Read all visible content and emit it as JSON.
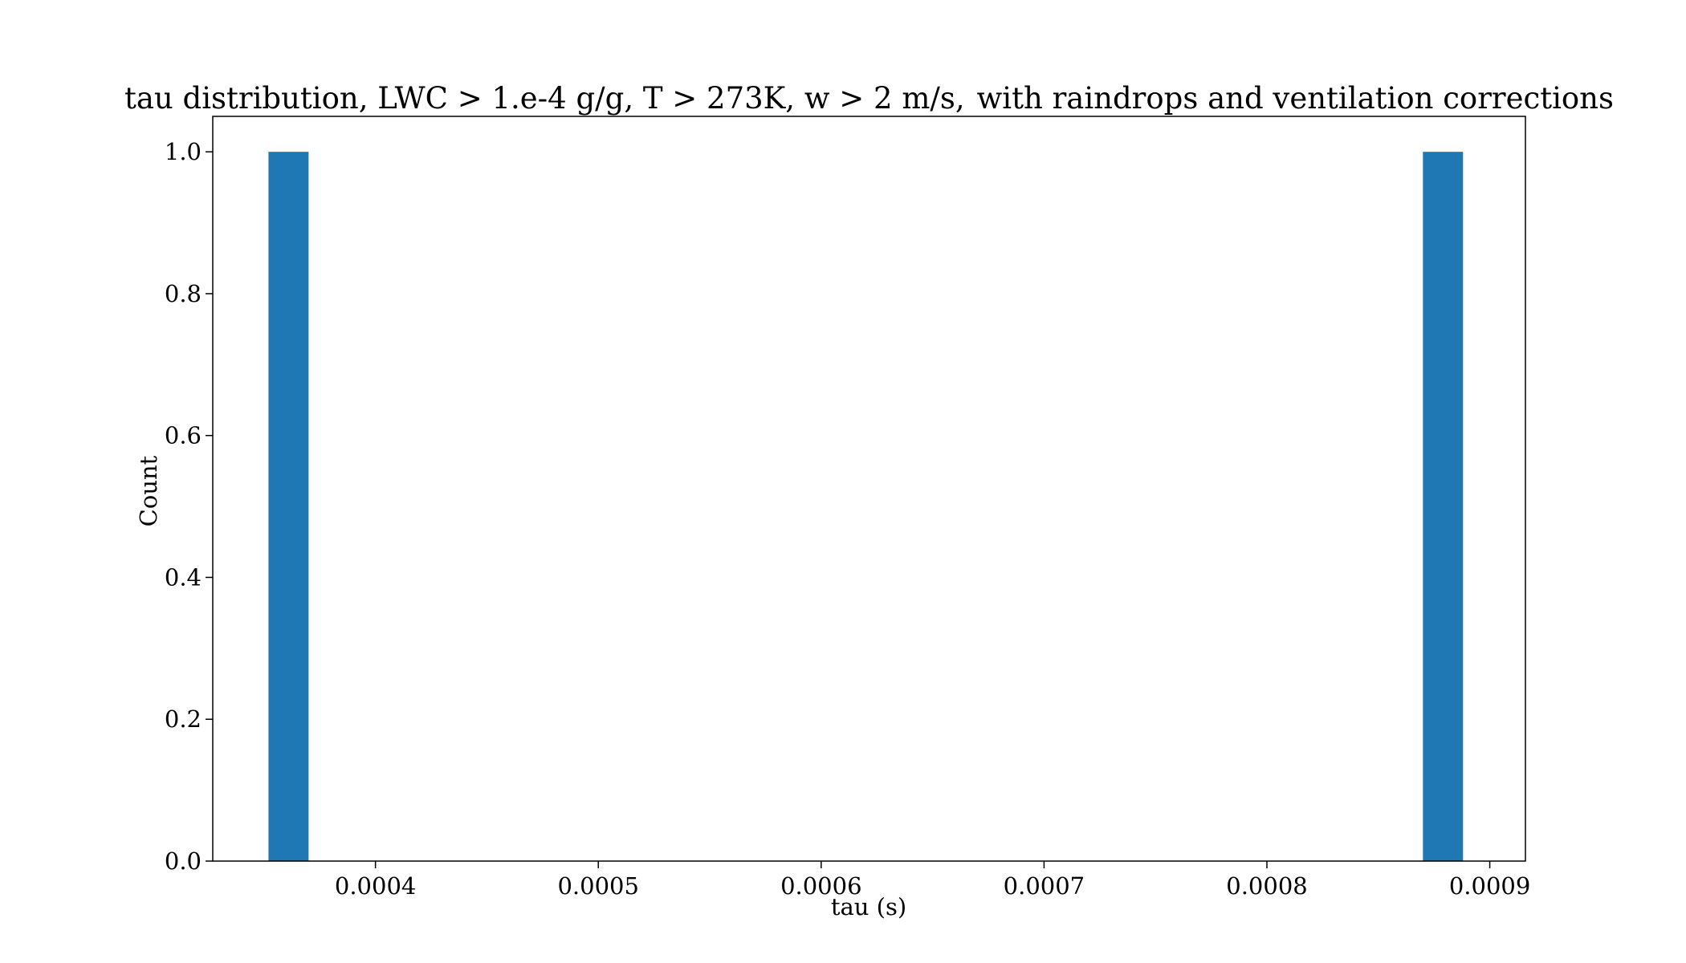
{
  "chart_data": {
    "type": "bar",
    "title_left": "tau distribution, LWC > 1.e-4 g/g, T > 273K, w > 2 m/s,",
    "title_right": "with raindrops and ventilation corrections",
    "xlabel": "tau (s)",
    "ylabel": "Count",
    "xlim": [
      0.000327,
      0.000916
    ],
    "ylim": [
      0.0,
      1.05
    ],
    "bar_width": 1.8e-05,
    "bars": [
      {
        "x": 0.000352,
        "value": 1.0
      },
      {
        "x": 0.00087,
        "value": 1.0
      }
    ],
    "x_ticks": [
      {
        "value": 0.0004,
        "label": "0.0004"
      },
      {
        "value": 0.0005,
        "label": "0.0005"
      },
      {
        "value": 0.0006,
        "label": "0.0006"
      },
      {
        "value": 0.0007,
        "label": "0.0007"
      },
      {
        "value": 0.0008,
        "label": "0.0008"
      },
      {
        "value": 0.0009,
        "label": "0.0009"
      }
    ],
    "y_ticks": [
      {
        "value": 0.0,
        "label": "0.0"
      },
      {
        "value": 0.2,
        "label": "0.2"
      },
      {
        "value": 0.4,
        "label": "0.4"
      },
      {
        "value": 0.6,
        "label": "0.6"
      },
      {
        "value": 0.8,
        "label": "0.8"
      },
      {
        "value": 1.0,
        "label": "1.0"
      }
    ],
    "grid": false,
    "legend": "none",
    "bar_color": "#1f77b4"
  }
}
